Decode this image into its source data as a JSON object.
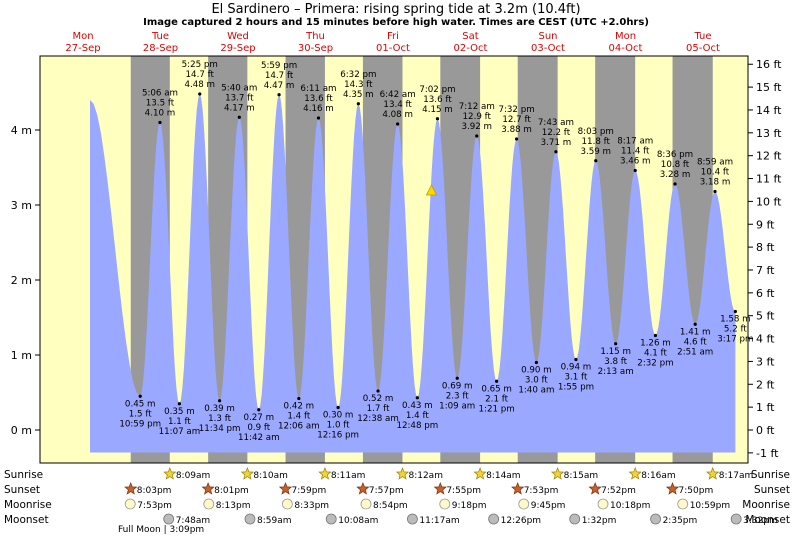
{
  "chart_data": {
    "type": "area",
    "title": "El Sardinero – Primera: rising  spring tide at 3.2m (10.4ft)",
    "subtitle": "Image captured 2 hours and 15 minutes before high water. Times are CEST (UTC +2.0hrs)",
    "y_unit_left": "m",
    "y_unit_right": "ft",
    "ylim_m": [
      -0.3,
      4.9
    ],
    "yticks_m": [
      0,
      1,
      2,
      3,
      4
    ],
    "yticks_ft": [
      -1,
      0,
      1,
      2,
      3,
      4,
      5,
      6,
      7,
      8,
      9,
      10,
      11,
      12,
      13,
      14,
      15,
      16
    ],
    "day_labels": [
      {
        "dow": "Mon",
        "date": "27-Sep"
      },
      {
        "dow": "Tue",
        "date": "28-Sep"
      },
      {
        "dow": "Wed",
        "date": "29-Sep"
      },
      {
        "dow": "Thu",
        "date": "30-Sep"
      },
      {
        "dow": "Fri",
        "date": "01-Oct"
      },
      {
        "dow": "Sat",
        "date": "02-Oct"
      },
      {
        "dow": "Sun",
        "date": "03-Oct"
      },
      {
        "dow": "Mon",
        "date": "04-Oct"
      },
      {
        "dow": "Tue",
        "date": "05-Oct"
      }
    ],
    "start_height_m": 4.4,
    "tides": [
      {
        "type": "low",
        "day": 0,
        "t": "10:59 pm",
        "m": 0.45,
        "ft": 1.5
      },
      {
        "type": "high",
        "day": 1,
        "t": "5:06 am",
        "m": 4.1,
        "ft": 13.5
      },
      {
        "type": "low",
        "day": 1,
        "t": "11:07 am",
        "m": 0.35,
        "ft": 1.1
      },
      {
        "type": "high",
        "day": 1,
        "t": "5:25 pm",
        "m": 4.48,
        "ft": 14.7
      },
      {
        "type": "low",
        "day": 1,
        "t": "11:34 pm",
        "m": 0.39,
        "ft": 1.3
      },
      {
        "type": "high",
        "day": 2,
        "t": "5:40 am",
        "m": 4.17,
        "ft": 13.7
      },
      {
        "type": "low",
        "day": 2,
        "t": "11:42 am",
        "m": 0.27,
        "ft": 0.9
      },
      {
        "type": "high",
        "day": 2,
        "t": "5:59 pm",
        "m": 4.47,
        "ft": 14.7
      },
      {
        "type": "low",
        "day": 3,
        "t": "12:06 am",
        "m": 0.42,
        "ft": 1.4
      },
      {
        "type": "high",
        "day": 3,
        "t": "6:11 am",
        "m": 4.16,
        "ft": 13.6
      },
      {
        "type": "low",
        "day": 3,
        "t": "12:16 pm",
        "m": 0.3,
        "ft": 1.0
      },
      {
        "type": "high",
        "day": 3,
        "t": "6:32 pm",
        "m": 4.35,
        "ft": 14.3
      },
      {
        "type": "low",
        "day": 4,
        "t": "12:38 am",
        "m": 0.52,
        "ft": 1.7
      },
      {
        "type": "high",
        "day": 4,
        "t": "6:42 am",
        "m": 4.08,
        "ft": 13.4
      },
      {
        "type": "low",
        "day": 4,
        "t": "12:48 pm",
        "m": 0.43,
        "ft": 1.4
      },
      {
        "type": "high",
        "day": 4,
        "t": "7:02 pm",
        "m": 4.15,
        "ft": 13.6
      },
      {
        "type": "low",
        "day": 5,
        "t": "1:09 am",
        "m": 0.69,
        "ft": 2.3
      },
      {
        "type": "high",
        "day": 5,
        "t": "7:12 am",
        "m": 3.92,
        "ft": 12.9
      },
      {
        "type": "low",
        "day": 5,
        "t": "1:21 pm",
        "m": 0.65,
        "ft": 2.1
      },
      {
        "type": "high",
        "day": 5,
        "t": "7:32 pm",
        "m": 3.88,
        "ft": 12.7
      },
      {
        "type": "low",
        "day": 6,
        "t": "1:40 am",
        "m": 0.9,
        "ft": 3.0
      },
      {
        "type": "high",
        "day": 6,
        "t": "7:43 am",
        "m": 3.71,
        "ft": 12.2
      },
      {
        "type": "low",
        "day": 6,
        "t": "1:55 pm",
        "m": 0.94,
        "ft": 3.1
      },
      {
        "type": "high",
        "day": 6,
        "t": "8:03 pm",
        "m": 3.59,
        "ft": 11.8
      },
      {
        "type": "low",
        "day": 7,
        "t": "2:13 am",
        "m": 1.15,
        "ft": 3.8
      },
      {
        "type": "high",
        "day": 7,
        "t": "8:17 am",
        "m": 3.46,
        "ft": 11.4
      },
      {
        "type": "low",
        "day": 7,
        "t": "2:32 pm",
        "m": 1.26,
        "ft": 4.1
      },
      {
        "type": "high",
        "day": 7,
        "t": "8:36 pm",
        "m": 3.28,
        "ft": 10.8
      },
      {
        "type": "low",
        "day": 8,
        "t": "2:51 am",
        "m": 1.41,
        "ft": 4.6
      },
      {
        "type": "high",
        "day": 8,
        "t": "8:59 am",
        "m": 3.18,
        "ft": 10.4
      },
      {
        "type": "low",
        "day": 8,
        "t": "3:17 pm",
        "m": 1.58,
        "ft": 5.2
      }
    ],
    "current_marker": {
      "label": "rising at 3.2m",
      "m": 3.2
    },
    "astro_rows": [
      "Sunrise",
      "Sunset",
      "Moonrise",
      "Moonset"
    ],
    "sunrise": [
      "8:09am",
      "8:10am",
      "8:11am",
      "8:12am",
      "8:14am",
      "8:15am",
      "8:16am",
      "8:17am"
    ],
    "sunset": [
      "8:03pm",
      "8:01pm",
      "7:59pm",
      "7:57pm",
      "7:55pm",
      "7:53pm",
      "7:52pm",
      "7:50pm"
    ],
    "moonrise": [
      "7:53pm",
      "8:13pm",
      "8:33pm",
      "8:54pm",
      "9:18pm",
      "9:45pm",
      "10:18pm",
      "10:59pm"
    ],
    "moonset": [
      "7:48am",
      "8:59am",
      "10:08am",
      "11:17am",
      "12:26pm",
      "1:32pm",
      "2:35pm",
      "3:32pm"
    ],
    "moon_phase": "Full Moon | 3:09pm",
    "colors": {
      "day": "#ffffc0",
      "night": "#999999",
      "water": "#9ba8ff",
      "day_label": "#e00000",
      "marker": "#ffd700"
    }
  }
}
